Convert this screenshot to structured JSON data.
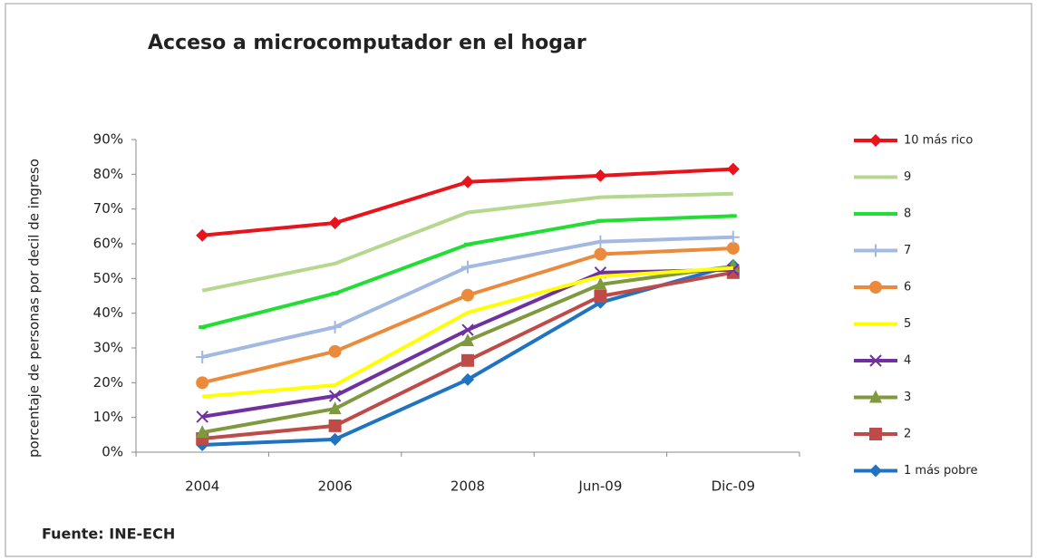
{
  "chart_data": {
    "type": "line",
    "title": "Acceso a microcomputador en el hogar",
    "y_label": "porcentaje de personas por decil de ingreso",
    "source": "Fuente: INE-ECH",
    "categories": [
      "2004",
      "2006",
      "2008",
      "Jun-09",
      "Dic-09"
    ],
    "ylim": [
      0,
      90
    ],
    "yticks": [
      {
        "value": 0,
        "label": "0%"
      },
      {
        "value": 10,
        "label": "10%"
      },
      {
        "value": 20,
        "label": "20%"
      },
      {
        "value": 30,
        "label": "30%"
      },
      {
        "value": 40,
        "label": "40%"
      },
      {
        "value": 50,
        "label": "50%"
      },
      {
        "value": 60,
        "label": "60%"
      },
      {
        "value": 70,
        "label": "70%"
      },
      {
        "value": 80,
        "label": "80%"
      },
      {
        "value": 90,
        "label": "90%"
      }
    ],
    "legend": "right",
    "series": [
      {
        "name": "10 más rico",
        "color": "#e8131b",
        "marker": "diamond",
        "values": [
          62.4,
          66,
          77.8,
          79.6,
          81.5
        ]
      },
      {
        "name": "9",
        "color": "#b5d88e",
        "marker": "none",
        "values": [
          46.5,
          54.3,
          69,
          73.4,
          74.4
        ]
      },
      {
        "name": "8",
        "color": "#22dd33",
        "marker": "dash",
        "values": [
          36,
          45.7,
          59.8,
          66.6,
          68
        ]
      },
      {
        "name": "7",
        "color": "#a2b9e2",
        "marker": "plus",
        "values": [
          27.4,
          36,
          53.3,
          60.6,
          61.9
        ]
      },
      {
        "name": "6",
        "color": "#ec8a3c",
        "marker": "circle",
        "values": [
          20,
          29,
          45.2,
          57,
          58.7
        ]
      },
      {
        "name": "5",
        "color": "#ffff00",
        "marker": "none",
        "values": [
          16,
          19.3,
          40.2,
          50.6,
          53
        ]
      },
      {
        "name": "4",
        "color": "#7030a0",
        "marker": "x",
        "values": [
          10.2,
          16.2,
          35.2,
          51.7,
          52.5
        ]
      },
      {
        "name": "3",
        "color": "#7f9a3e",
        "marker": "triangle",
        "values": [
          5.7,
          12.5,
          32.1,
          48.3,
          53.5
        ]
      },
      {
        "name": "2",
        "color": "#be4b48",
        "marker": "square",
        "values": [
          3.9,
          7.6,
          26.4,
          44.9,
          51.7
        ]
      },
      {
        "name": "1  más pobre",
        "color": "#2073c0",
        "marker": "diamond",
        "values": [
          2.1,
          3.7,
          20.9,
          43.1,
          53.8
        ]
      }
    ]
  }
}
